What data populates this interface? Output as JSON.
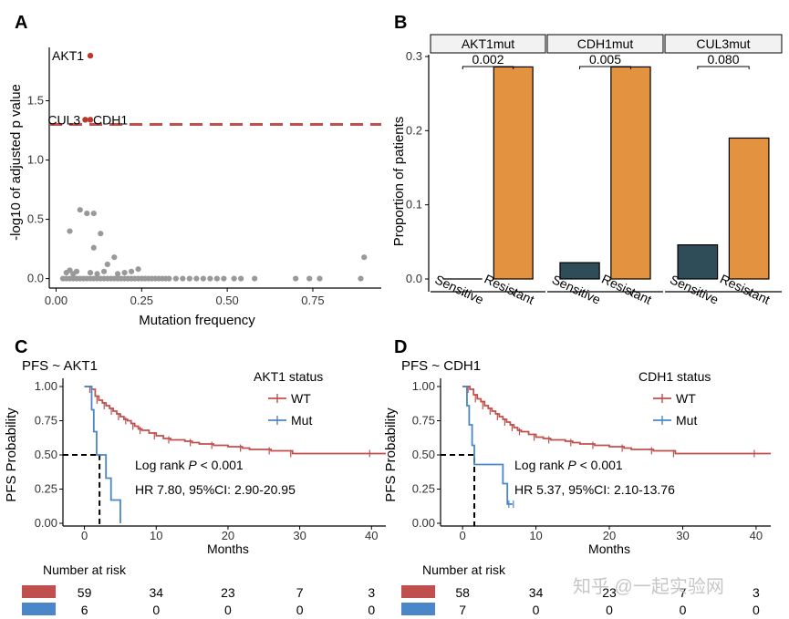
{
  "colors": {
    "red": "#c0504d",
    "blue": "#4a86c8",
    "orange": "#e3923f",
    "teal": "#2e4d58",
    "gray": "#999999"
  },
  "watermark": "知乎 @一起实验网",
  "chart_data": [
    {
      "panel": "A",
      "type": "scatter",
      "xlabel": "Mutation frequency",
      "ylabel": "-log10 of adjusted p value",
      "xlim": [
        -0.02,
        0.95
      ],
      "ylim": [
        -0.08,
        1.95
      ],
      "xticks": [
        "0.00",
        "0.25",
        "0.50",
        "0.75"
      ],
      "yticks": [
        "0.0",
        "0.5",
        "1.0",
        "1.5"
      ],
      "xtick_values": [
        0,
        0.25,
        0.5,
        0.75
      ],
      "ytick_values": [
        0,
        0.5,
        1.0,
        1.5
      ],
      "threshold": 1.3,
      "labeled_points": [
        {
          "label": "AKT1",
          "x": 0.1,
          "y": 1.88
        },
        {
          "label": "CUL3",
          "x": 0.085,
          "y": 1.34
        },
        {
          "label": "CDH1",
          "x": 0.1,
          "y": 1.34
        }
      ],
      "points": [
        [
          0.07,
          0.58
        ],
        [
          0.09,
          0.55
        ],
        [
          0.11,
          0.55
        ],
        [
          0.13,
          0.38
        ],
        [
          0.11,
          0.26
        ],
        [
          0.04,
          0.4
        ],
        [
          0.17,
          0.18
        ],
        [
          0.15,
          0.12
        ],
        [
          0.9,
          0.18
        ],
        [
          0.24,
          0.08
        ],
        [
          0.03,
          0.05
        ],
        [
          0.04,
          0.07
        ],
        [
          0.05,
          0.04
        ],
        [
          0.06,
          0.06
        ],
        [
          0.1,
          0.05
        ],
        [
          0.12,
          0.04
        ],
        [
          0.14,
          0.06
        ],
        [
          0.18,
          0.04
        ],
        [
          0.2,
          0.05
        ],
        [
          0.22,
          0.06
        ],
        [
          0.02,
          0.0
        ],
        [
          0.03,
          0.0
        ],
        [
          0.04,
          0.0
        ],
        [
          0.05,
          0.0
        ],
        [
          0.06,
          0.0
        ],
        [
          0.07,
          0.0
        ],
        [
          0.08,
          0.0
        ],
        [
          0.09,
          0.0
        ],
        [
          0.1,
          0.0
        ],
        [
          0.11,
          0.0
        ],
        [
          0.12,
          0.0
        ],
        [
          0.13,
          0.0
        ],
        [
          0.14,
          0.0
        ],
        [
          0.15,
          0.0
        ],
        [
          0.16,
          0.0
        ],
        [
          0.17,
          0.0
        ],
        [
          0.18,
          0.0
        ],
        [
          0.19,
          0.0
        ],
        [
          0.2,
          0.0
        ],
        [
          0.21,
          0.0
        ],
        [
          0.22,
          0.0
        ],
        [
          0.23,
          0.0
        ],
        [
          0.24,
          0.0
        ],
        [
          0.25,
          0.0
        ],
        [
          0.26,
          0.0
        ],
        [
          0.27,
          0.0
        ],
        [
          0.28,
          0.0
        ],
        [
          0.29,
          0.0
        ],
        [
          0.3,
          0.0
        ],
        [
          0.31,
          0.0
        ],
        [
          0.32,
          0.0
        ],
        [
          0.33,
          0.0
        ],
        [
          0.35,
          0.0
        ],
        [
          0.37,
          0.0
        ],
        [
          0.39,
          0.0
        ],
        [
          0.41,
          0.0
        ],
        [
          0.43,
          0.0
        ],
        [
          0.45,
          0.0
        ],
        [
          0.47,
          0.0
        ],
        [
          0.49,
          0.0
        ],
        [
          0.52,
          0.0
        ],
        [
          0.54,
          0.0
        ],
        [
          0.58,
          0.0
        ],
        [
          0.7,
          0.0
        ],
        [
          0.74,
          0.0
        ],
        [
          0.77,
          0.0
        ],
        [
          0.89,
          0.0
        ]
      ]
    },
    {
      "panel": "B",
      "type": "bar",
      "ylabel": "Proportion of patients",
      "ylim": [
        0,
        0.3
      ],
      "yticks": [
        "0.0",
        "0.1",
        "0.2",
        "0.3"
      ],
      "ytick_values": [
        0,
        0.1,
        0.2,
        0.3
      ],
      "categories": [
        "Sensitive",
        "Resistant"
      ],
      "facets": [
        {
          "gene": "AKT1mut",
          "pvalue": "0.002",
          "values": [
            0.0,
            0.286
          ]
        },
        {
          "gene": "CDH1mut",
          "pvalue": "0.005",
          "values": [
            0.022,
            0.286
          ]
        },
        {
          "gene": "CUL3mut",
          "pvalue": "0.080",
          "values": [
            0.046,
            0.19
          ]
        }
      ]
    },
    {
      "panel": "C",
      "type": "line",
      "title": "PFS ~ AKT1",
      "xlabel": "Months",
      "ylabel": "PFS Probability",
      "xlim": [
        -3,
        42
      ],
      "ylim": [
        -0.02,
        1.02
      ],
      "xticks": [
        "0",
        "10",
        "20",
        "30",
        "40"
      ],
      "xtick_values": [
        0,
        10,
        20,
        30,
        40
      ],
      "yticks": [
        "0.00",
        "0.25",
        "0.50",
        "0.75",
        "1.00"
      ],
      "ytick_values": [
        0,
        0.25,
        0.5,
        0.75,
        1.0
      ],
      "legend_title": "AKT1 status",
      "log_rank_label": "Log rank",
      "log_rank_p": "P",
      "log_rank_value": "< 0.001",
      "hr_text": "HR 7.80, 95%CI: 2.90-20.95",
      "median_mut": 2.1,
      "series": [
        {
          "name": "WT",
          "color": "red",
          "censor_every": 2,
          "x": [
            0,
            1.0,
            1.5,
            2.0,
            2.5,
            3.0,
            3.5,
            4.0,
            4.5,
            5.0,
            5.5,
            6.0,
            6.5,
            7.0,
            7.5,
            8.0,
            9.0,
            10.0,
            11.0,
            12.0,
            14.0,
            15.0,
            16.0,
            18.0,
            20.0,
            22.0,
            23.0,
            26.0,
            28.0,
            29.0,
            31.0,
            40.0,
            42.0
          ],
          "y": [
            1.0,
            0.98,
            0.93,
            0.9,
            0.88,
            0.86,
            0.84,
            0.82,
            0.8,
            0.78,
            0.76,
            0.75,
            0.73,
            0.71,
            0.69,
            0.68,
            0.66,
            0.64,
            0.62,
            0.61,
            0.6,
            0.59,
            0.58,
            0.57,
            0.56,
            0.55,
            0.54,
            0.53,
            0.53,
            0.51,
            0.51,
            0.51,
            0.51
          ]
        },
        {
          "name": "Mut",
          "color": "blue",
          "censor_every": 0,
          "x": [
            0,
            0.5,
            1.0,
            1.3,
            1.7,
            2.1,
            3.0,
            3.7,
            4.5,
            5.0
          ],
          "y": [
            1.0,
            1.0,
            0.83,
            0.67,
            0.5,
            0.5,
            0.33,
            0.17,
            0.17,
            0.0
          ]
        }
      ],
      "risk_table": {
        "title": "Number at risk",
        "times": [
          0,
          10,
          20,
          30,
          40
        ],
        "rows": [
          {
            "color": "red",
            "counts": [
              "59",
              "34",
              "23",
              "7",
              "3"
            ]
          },
          {
            "color": "blue",
            "counts": [
              "6",
              "0",
              "0",
              "0",
              "0"
            ]
          }
        ]
      }
    },
    {
      "panel": "D",
      "type": "line",
      "title": "PFS ~ CDH1",
      "xlabel": "Months",
      "ylabel": "PFS Probability",
      "xlim": [
        -3,
        42
      ],
      "ylim": [
        -0.02,
        1.02
      ],
      "xticks": [
        "0",
        "10",
        "20",
        "30",
        "40"
      ],
      "xtick_values": [
        0,
        10,
        20,
        30,
        40
      ],
      "yticks": [
        "0.00",
        "0.25",
        "0.50",
        "0.75",
        "1.00"
      ],
      "ytick_values": [
        0,
        0.25,
        0.5,
        0.75,
        1.0
      ],
      "legend_title": "CDH1 status",
      "log_rank_label": "Log rank",
      "log_rank_p": "P",
      "log_rank_value": "< 0.001",
      "hr_text": "HR 5.37, 95%CI: 2.10-13.76",
      "median_mut": 1.6,
      "series": [
        {
          "name": "WT",
          "color": "red",
          "censor_every": 2,
          "x": [
            0,
            1.0,
            1.5,
            2.0,
            2.5,
            3.0,
            3.5,
            4.0,
            4.5,
            5.0,
            5.5,
            6.0,
            6.5,
            7.0,
            7.5,
            8.0,
            9.0,
            10.0,
            11.0,
            12.0,
            14.0,
            15.0,
            16.0,
            18.0,
            20.0,
            22.0,
            23.0,
            26.0,
            28.0,
            29.0,
            31.0,
            40.0,
            42.0
          ],
          "y": [
            1.0,
            0.98,
            0.94,
            0.91,
            0.89,
            0.86,
            0.84,
            0.82,
            0.8,
            0.78,
            0.76,
            0.74,
            0.72,
            0.7,
            0.68,
            0.67,
            0.65,
            0.63,
            0.62,
            0.61,
            0.6,
            0.59,
            0.58,
            0.57,
            0.56,
            0.55,
            0.54,
            0.53,
            0.53,
            0.51,
            0.51,
            0.51,
            0.51
          ]
        },
        {
          "name": "Mut",
          "color": "blue",
          "censor_every": 0,
          "x": [
            0,
            0.6,
            0.9,
            1.3,
            1.6,
            5.5,
            6.1,
            6.8
          ],
          "y": [
            1.0,
            0.86,
            0.72,
            0.57,
            0.43,
            0.29,
            0.14,
            0.14
          ]
        }
      ],
      "risk_table": {
        "title": "Number at risk",
        "times": [
          0,
          10,
          20,
          30,
          40
        ],
        "rows": [
          {
            "color": "red",
            "counts": [
              "58",
              "34",
              "23",
              "7",
              "3"
            ]
          },
          {
            "color": "blue",
            "counts": [
              "7",
              "0",
              "0",
              "0",
              "0"
            ]
          }
        ]
      }
    }
  ]
}
